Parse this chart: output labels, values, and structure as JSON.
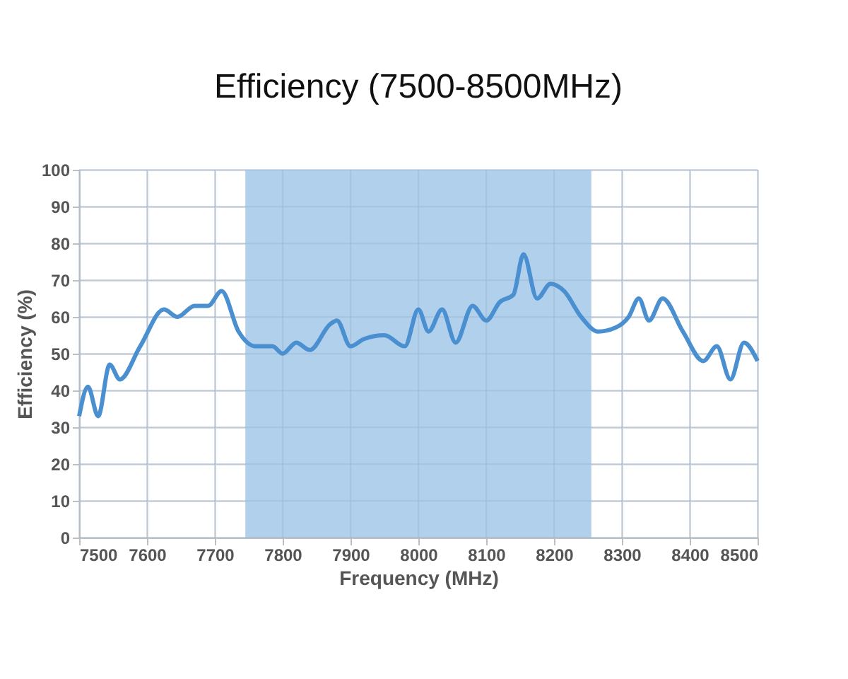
{
  "chart_data": {
    "type": "line",
    "title": "Efficiency (7500-8500MHz)",
    "xlabel": "Frequency (MHz)",
    "ylabel": "Efficiency (%)",
    "x": [
      7500,
      7513,
      7528,
      7545,
      7560,
      7590,
      7625,
      7645,
      7670,
      7690,
      7710,
      7735,
      7760,
      7785,
      7800,
      7820,
      7840,
      7870,
      7880,
      7900,
      7920,
      7950,
      7980,
      8000,
      8015,
      8035,
      8055,
      8080,
      8100,
      8120,
      8140,
      8155,
      8175,
      8195,
      8215,
      8240,
      8265,
      8290,
      8310,
      8325,
      8340,
      8360,
      8390,
      8420,
      8440,
      8460,
      8480,
      8500
    ],
    "series": [
      {
        "color": "#4a90d0",
        "values": [
          33,
          41,
          33,
          47,
          43,
          52,
          62,
          60,
          63,
          63,
          67,
          56,
          52,
          52,
          50,
          53,
          51,
          58,
          59,
          52,
          54,
          55,
          52,
          62,
          56,
          62,
          53,
          63,
          59,
          64,
          66,
          77,
          65,
          69,
          67,
          60,
          56,
          57,
          60,
          65,
          59,
          65,
          56,
          48,
          52,
          43,
          53,
          48
        ]
      }
    ],
    "xlim": [
      7500,
      8500
    ],
    "xticks": [
      7500,
      7600,
      7700,
      7800,
      7900,
      8000,
      8100,
      8200,
      8300,
      8400,
      8500
    ],
    "ylim": [
      0,
      100
    ],
    "yticks": [
      0,
      10,
      20,
      30,
      40,
      50,
      60,
      70,
      80,
      90,
      100
    ],
    "grid": true,
    "marker": "none",
    "line_style": "solid",
    "bands": [
      {
        "axis": "x",
        "from": 7745,
        "to": 8255,
        "color": "#a9cbea"
      }
    ]
  }
}
